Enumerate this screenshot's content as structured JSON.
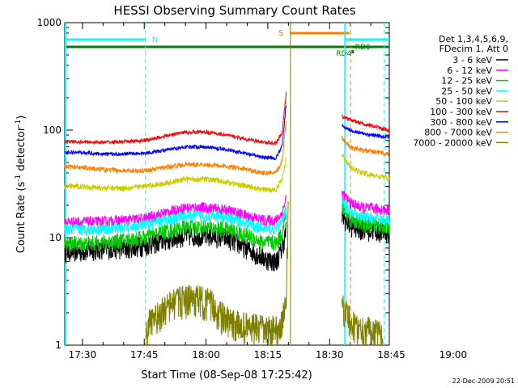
{
  "chart_data": {
    "type": "line",
    "title": "HESSI Observing Summary Count Rates",
    "xlabel": "Start Time (08-Sep-08 17:25:42)",
    "ylabel_parts": [
      "Count Rate (s",
      "-1",
      " detector",
      "-1",
      ")"
    ],
    "yscale": "log",
    "ylim": [
      1,
      1000
    ],
    "xlim_min": [
      25.7,
      104.5
    ],
    "ytick_labels": [
      "1",
      "10",
      "100",
      "1000"
    ],
    "ytick_values": [
      1,
      10,
      100,
      1000
    ],
    "xtick_labels": [
      "17:30",
      "17:45",
      "18:00",
      "18:15",
      "18:30",
      "18:45",
      "19:00"
    ],
    "xtick_values_min": [
      30,
      45,
      60,
      75,
      90,
      105,
      120
    ],
    "date_stamp": "22-Dec-2009 20:51",
    "legend": {
      "header": [
        "Det 1,3,4,5,6,9,",
        "FDecim 1, Att 0"
      ],
      "position": "right"
    },
    "series": [
      {
        "name": "3 - 6 keV",
        "color": "#000000",
        "points": [
          [
            25.7,
            7.5
          ],
          [
            30,
            7.5
          ],
          [
            35,
            8
          ],
          [
            40,
            8
          ],
          [
            45,
            8.5
          ],
          [
            50,
            9.5
          ],
          [
            55,
            10.5
          ],
          [
            60,
            10.5
          ],
          [
            65,
            10
          ],
          [
            70,
            8
          ],
          [
            74,
            6.5
          ],
          [
            77,
            6
          ],
          [
            78.5,
            8
          ],
          [
            79.5,
            12
          ]
        ],
        "points2": [
          [
            93,
            16
          ],
          [
            95,
            13
          ],
          [
            98,
            12
          ],
          [
            102,
            11.5
          ],
          [
            104.5,
            11
          ]
        ]
      },
      {
        "name": "6 - 12 keV",
        "color": "#ff00ff",
        "points": [
          [
            25.7,
            14
          ],
          [
            30,
            14
          ],
          [
            35,
            14
          ],
          [
            40,
            14.5
          ],
          [
            45,
            15
          ],
          [
            50,
            17
          ],
          [
            55,
            19
          ],
          [
            60,
            19
          ],
          [
            65,
            18
          ],
          [
            70,
            16
          ],
          [
            74,
            14.5
          ],
          [
            77,
            14.5
          ],
          [
            78.5,
            17
          ],
          [
            79.5,
            24
          ]
        ],
        "points2": [
          [
            93,
            26
          ],
          [
            95,
            21
          ],
          [
            98,
            19
          ],
          [
            102,
            18.5
          ],
          [
            104.5,
            18
          ]
        ]
      },
      {
        "name": "12 - 25 keV",
        "color": "#00cc00",
        "points": [
          [
            25.7,
            8.8
          ],
          [
            30,
            8.8
          ],
          [
            35,
            9
          ],
          [
            40,
            9.5
          ],
          [
            45,
            10
          ],
          [
            50,
            11.5
          ],
          [
            55,
            12.5
          ],
          [
            60,
            12.5
          ],
          [
            65,
            12
          ],
          [
            70,
            10.5
          ],
          [
            74,
            9
          ],
          [
            77,
            9
          ],
          [
            78.5,
            11
          ],
          [
            79.5,
            17
          ]
        ],
        "points2": [
          [
            93,
            20
          ],
          [
            95,
            15
          ],
          [
            98,
            13.5
          ],
          [
            102,
            13
          ],
          [
            104.5,
            12.5
          ]
        ]
      },
      {
        "name": "25 - 50 keV",
        "color": "#00ffff",
        "points": [
          [
            25.7,
            12
          ],
          [
            30,
            12
          ],
          [
            35,
            12
          ],
          [
            40,
            12.5
          ],
          [
            45,
            13
          ],
          [
            50,
            14.5
          ],
          [
            55,
            16
          ],
          [
            60,
            16
          ],
          [
            65,
            15.5
          ],
          [
            70,
            13.5
          ],
          [
            74,
            12
          ],
          [
            77,
            12
          ],
          [
            78.5,
            14
          ],
          [
            79.5,
            20
          ]
        ],
        "points2": [
          [
            93,
            22
          ],
          [
            95,
            17
          ],
          [
            98,
            15.5
          ],
          [
            102,
            15
          ],
          [
            104.5,
            14.5
          ]
        ]
      },
      {
        "name": "50 - 100 keV",
        "color": "#cccc00",
        "points": [
          [
            25.7,
            30
          ],
          [
            30,
            30
          ],
          [
            35,
            29
          ],
          [
            40,
            29
          ],
          [
            45,
            30
          ],
          [
            50,
            32
          ],
          [
            55,
            35
          ],
          [
            60,
            35
          ],
          [
            65,
            33
          ],
          [
            70,
            30
          ],
          [
            74,
            28
          ],
          [
            77,
            28
          ],
          [
            78.5,
            35
          ],
          [
            79.5,
            55
          ]
        ],
        "points2": [
          [
            93,
            60
          ],
          [
            95,
            45
          ],
          [
            98,
            40
          ],
          [
            102,
            37
          ],
          [
            104.5,
            36
          ]
        ]
      },
      {
        "name": "100 - 300 keV",
        "color": "#ff0000",
        "points": [
          [
            25.7,
            78
          ],
          [
            30,
            78
          ],
          [
            35,
            77
          ],
          [
            40,
            78
          ],
          [
            45,
            80
          ],
          [
            50,
            88
          ],
          [
            55,
            96
          ],
          [
            60,
            96
          ],
          [
            65,
            90
          ],
          [
            70,
            82
          ],
          [
            74,
            77
          ],
          [
            77,
            76
          ],
          [
            78.5,
            95
          ],
          [
            79.5,
            230
          ]
        ],
        "points2": [
          [
            93,
            135
          ],
          [
            95,
            125
          ],
          [
            98,
            115
          ],
          [
            102,
            105
          ],
          [
            104.5,
            100
          ]
        ]
      },
      {
        "name": "300 - 800 keV",
        "color": "#0000ff",
        "points": [
          [
            25.7,
            62
          ],
          [
            30,
            62
          ],
          [
            35,
            60
          ],
          [
            40,
            60
          ],
          [
            45,
            61
          ],
          [
            50,
            65
          ],
          [
            55,
            70
          ],
          [
            60,
            70
          ],
          [
            65,
            66
          ],
          [
            70,
            60
          ],
          [
            74,
            56
          ],
          [
            77,
            55
          ],
          [
            78.5,
            72
          ],
          [
            79.5,
            180
          ]
        ],
        "points2": [
          [
            93,
            110
          ],
          [
            95,
            100
          ],
          [
            98,
            93
          ],
          [
            102,
            88
          ],
          [
            104.5,
            86
          ]
        ]
      },
      {
        "name": "800 - 7000 keV",
        "color": "#ff8000",
        "points": [
          [
            25.7,
            46
          ],
          [
            30,
            45
          ],
          [
            35,
            43
          ],
          [
            40,
            42
          ],
          [
            45,
            42
          ],
          [
            50,
            45
          ],
          [
            55,
            48
          ],
          [
            60,
            48
          ],
          [
            65,
            46
          ],
          [
            70,
            43
          ],
          [
            74,
            40
          ],
          [
            77,
            40
          ],
          [
            78.5,
            52
          ],
          [
            79.5,
            130
          ]
        ],
        "points2": [
          [
            93,
            85
          ],
          [
            95,
            70
          ],
          [
            98,
            65
          ],
          [
            102,
            62
          ],
          [
            104.5,
            60
          ]
        ]
      },
      {
        "name": "7000 - 20000 keV",
        "color": "#808000",
        "points": [
          [
            45.3,
            1.2
          ],
          [
            46,
            1.6
          ],
          [
            48,
            1.8
          ],
          [
            50,
            2.2
          ],
          [
            52,
            2.5
          ],
          [
            55,
            2.7
          ],
          [
            58,
            2.7
          ],
          [
            61,
            2.5
          ],
          [
            63,
            2
          ],
          [
            66,
            1.6
          ],
          [
            70,
            1.5
          ],
          [
            74,
            1.4
          ],
          [
            77,
            1.4
          ],
          [
            78.5,
            1.6
          ],
          [
            79.5,
            3
          ],
          [
            80,
            20
          ]
        ],
        "points2": [
          [
            93,
            2.5
          ],
          [
            94,
            2
          ],
          [
            96,
            1.5
          ],
          [
            99,
            1.4
          ],
          [
            101,
            1.3
          ],
          [
            103,
            1.2
          ]
        ]
      }
    ],
    "markers": [
      {
        "label": "N",
        "color": "#00ffff",
        "x_start": 25.7,
        "x_end": 45.3
      },
      {
        "label": "S",
        "color": "#ff8000",
        "x_start": 80.3,
        "x_end": 94.8
      },
      {
        "label": "RD4",
        "color": "#008000"
      },
      {
        "label": "RD0",
        "color": "#008000"
      }
    ]
  }
}
